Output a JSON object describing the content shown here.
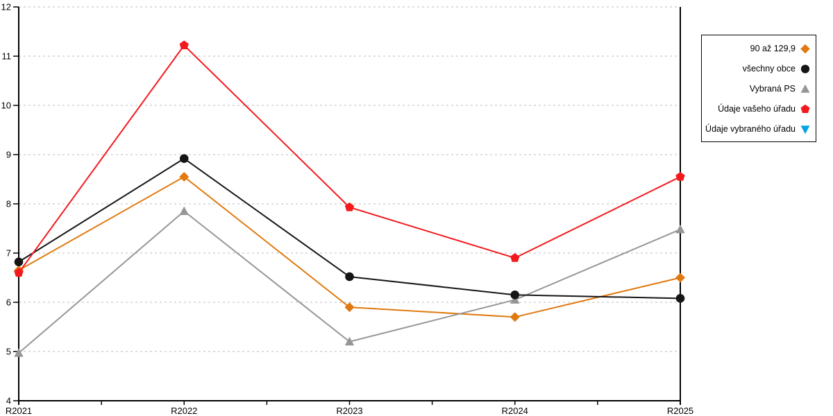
{
  "chart_data": {
    "type": "line",
    "title": "",
    "xlabel": "",
    "ylabel": "",
    "x_categories": [
      "R2021",
      "R2022",
      "R2023",
      "R2024",
      "R2025"
    ],
    "ylim": [
      4,
      12
    ],
    "y_ticks": [
      4,
      5,
      6,
      7,
      8,
      9,
      10,
      11,
      12
    ],
    "grid": "horizontal-dashed",
    "legend_position": "outside-right",
    "series": [
      {
        "name": "90 až 129,9",
        "marker": "diamond",
        "color": "#E0790F",
        "values": [
          6.65,
          8.55,
          5.9,
          5.7,
          6.5
        ]
      },
      {
        "name": "všechny obce",
        "marker": "circle",
        "color": "#151515",
        "values": [
          6.82,
          8.92,
          6.52,
          6.15,
          6.08
        ]
      },
      {
        "name": "Vybraná PS",
        "marker": "triangle-up",
        "color": "#969696",
        "values": [
          4.97,
          7.85,
          5.2,
          6.05,
          7.48
        ]
      },
      {
        "name": "Údaje vašeho úřadu",
        "marker": "pentagon",
        "color": "#F3191D",
        "values": [
          6.6,
          11.22,
          7.93,
          6.9,
          8.55
        ]
      },
      {
        "name": "Údaje vybraného úřadu",
        "marker": "triangle-down",
        "color": "#00A3E8",
        "values": []
      }
    ],
    "colors": {
      "axis": "#000000",
      "gridline": "#BBBBBB",
      "tick_label": "#000000"
    }
  },
  "legend": {
    "items": [
      {
        "label": "90 až 129,9"
      },
      {
        "label": "všechny obce"
      },
      {
        "label": "Vybraná PS"
      },
      {
        "label": "Údaje vašeho úřadu"
      },
      {
        "label": "Údaje vybraného úřadu"
      }
    ]
  }
}
